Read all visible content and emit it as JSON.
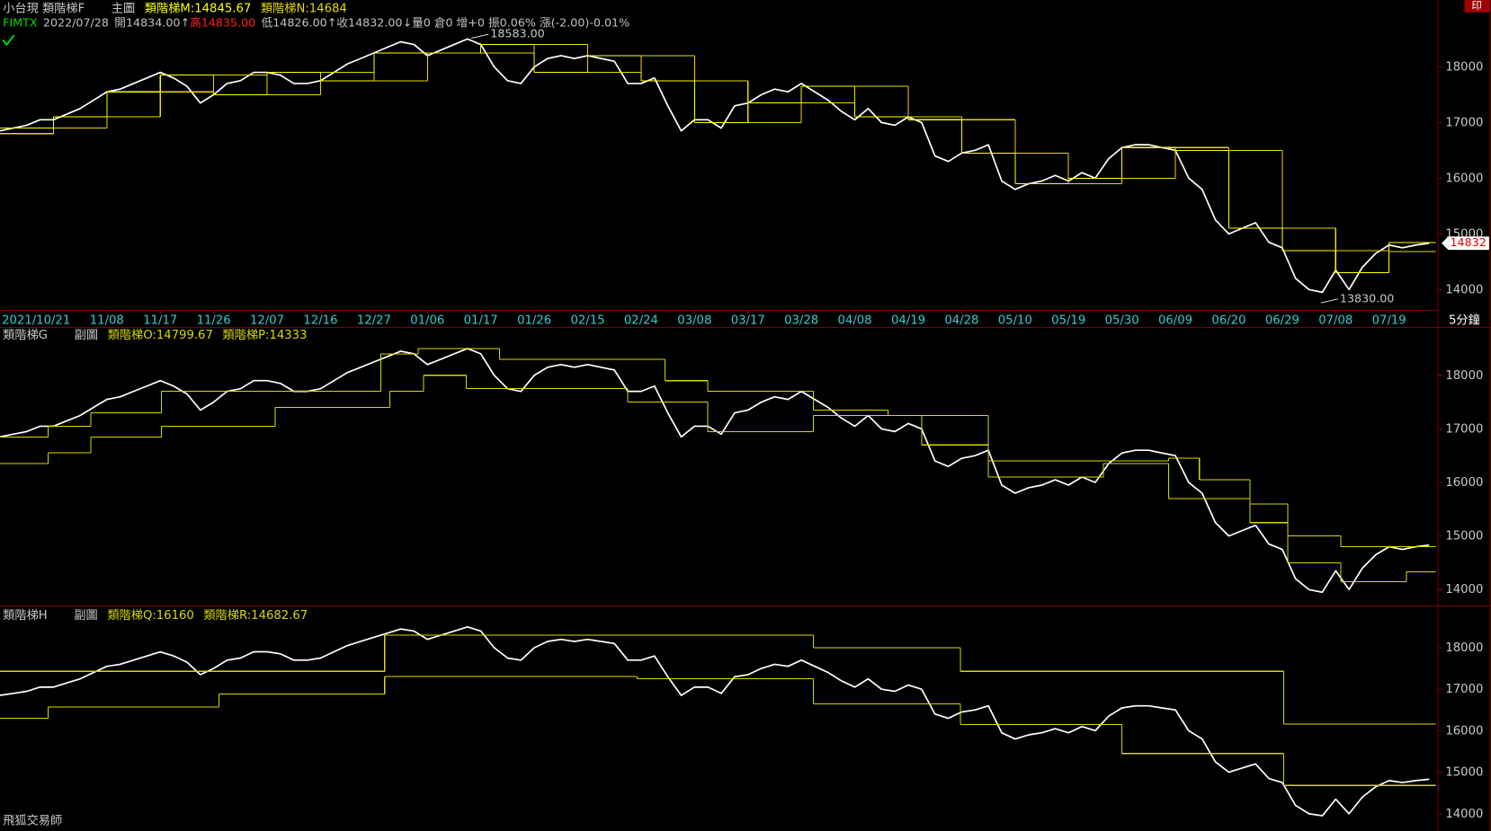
{
  "print_button": "印",
  "interval": "5分鐘",
  "footer": "飛狐交易師",
  "chart_data": [
    {
      "type": "line",
      "title": "小台現  類階梯F",
      "pane_label": "主圖",
      "quote": [
        {
          "text": "FIMTX",
          "color": "#00e000"
        },
        {
          "text": "2022/07/28",
          "color": "#c0c0c0"
        },
        {
          "text": "開14834.00↑",
          "color": "#c0c0c0"
        },
        {
          "text": "高14835.00",
          "color": "#ff2020"
        },
        {
          "text": "低14826.00↑收14832.00↓量0 倉0 增+0 振0.06% 漲(-2.00)-0.01%",
          "color": "#c0c0c0"
        }
      ],
      "xlim": [
        0,
        107.5
      ],
      "ylim": [
        13640,
        19200
      ],
      "yticks": [
        14000,
        15000,
        16000,
        17000,
        18000
      ],
      "xticks": [
        {
          "value": 0,
          "label": "2021/10/21"
        },
        {
          "value": 8,
          "label": "11/08"
        },
        {
          "value": 12,
          "label": "11/17"
        },
        {
          "value": 16,
          "label": "11/26"
        },
        {
          "value": 20,
          "label": "12/07"
        },
        {
          "value": 24,
          "label": "12/16"
        },
        {
          "value": 28,
          "label": "12/27"
        },
        {
          "value": 32,
          "label": "01/06"
        },
        {
          "value": 36,
          "label": "01/17"
        },
        {
          "value": 40,
          "label": "01/26"
        },
        {
          "value": 44,
          "label": "02/15"
        },
        {
          "value": 48,
          "label": "02/24"
        },
        {
          "value": 52,
          "label": "03/08"
        },
        {
          "value": 56,
          "label": "03/17"
        },
        {
          "value": 60,
          "label": "03/28"
        },
        {
          "value": 64,
          "label": "04/08"
        },
        {
          "value": 68,
          "label": "04/19"
        },
        {
          "value": 72,
          "label": "04/28"
        },
        {
          "value": 76,
          "label": "05/10"
        },
        {
          "value": 80,
          "label": "05/19"
        },
        {
          "value": 84,
          "label": "05/30"
        },
        {
          "value": 88,
          "label": "06/09"
        },
        {
          "value": 92,
          "label": "06/20"
        },
        {
          "value": 96,
          "label": "06/29"
        },
        {
          "value": 100,
          "label": "07/08"
        },
        {
          "value": 104,
          "label": "07/19"
        }
      ],
      "last_price": 14832,
      "annotations": [
        {
          "x": 36,
          "value": 18583,
          "label": "18583.00"
        },
        {
          "x": 99.6,
          "value": 13830,
          "label": "13830.00"
        }
      ],
      "series": [
        {
          "color": "#ffffff",
          "values": [
            16850,
            16900,
            16950,
            17050,
            17050,
            17150,
            17250,
            17400,
            17550,
            17600,
            17700,
            17800,
            17900,
            17800,
            17650,
            17350,
            17500,
            17700,
            17750,
            17900,
            17900,
            17850,
            17700,
            17700,
            17750,
            17900,
            18050,
            18150,
            18250,
            18350,
            18450,
            18400,
            18200,
            18300,
            18400,
            18500,
            18400,
            18000,
            17750,
            17700,
            18000,
            18150,
            18200,
            18150,
            18200,
            18150,
            18100,
            17700,
            17700,
            17800,
            17300,
            16850,
            17050,
            17050,
            16900,
            17300,
            17350,
            17500,
            17600,
            17550,
            17700,
            17550,
            17400,
            17200,
            17050,
            17250,
            17000,
            16950,
            17100,
            17000,
            16400,
            16300,
            16450,
            16500,
            16600,
            15950,
            15800,
            15900,
            15950,
            16050,
            15950,
            16100,
            16000,
            16350,
            16550,
            16600,
            16600,
            16550,
            16500,
            16000,
            15800,
            15250,
            15000,
            15100,
            15200,
            14850,
            14750,
            14200,
            14000,
            13950,
            14350,
            14000,
            14400,
            14650,
            14800,
            14750,
            14800,
            14832
          ]
        },
        {
          "name": "類階梯M:14845.67",
          "color": "#ffff00",
          "x": [
            0,
            4,
            8,
            12,
            16,
            20,
            24,
            28,
            32,
            36,
            40,
            44,
            48,
            52,
            56,
            60,
            64,
            68,
            72,
            76,
            80,
            84,
            88,
            92,
            96,
            100,
            104
          ],
          "values": [
            16900,
            17100,
            17550,
            17850,
            17500,
            17900,
            17750,
            18250,
            18250,
            18400,
            17900,
            18200,
            17750,
            17000,
            17350,
            17650,
            17100,
            17050,
            16450,
            15900,
            16000,
            16550,
            16500,
            15100,
            14700,
            14300,
            14845.67
          ]
        },
        {
          "name": "類階梯N:14684",
          "color": "#e8d800",
          "x": [
            0,
            4,
            8,
            12,
            16,
            20,
            24,
            28,
            32,
            36,
            40,
            44,
            48,
            52,
            56,
            60,
            64,
            68,
            72,
            76,
            80,
            84,
            88,
            92,
            96,
            100,
            104
          ],
          "values": [
            16800,
            16900,
            17100,
            17550,
            17850,
            17500,
            17900,
            17750,
            18250,
            18250,
            18400,
            17900,
            18200,
            17750,
            17000,
            17350,
            17650,
            17100,
            17050,
            16450,
            15900,
            16000,
            16550,
            16500,
            15100,
            14700,
            14684
          ]
        }
      ]
    },
    {
      "type": "line",
      "title": "類階梯G",
      "pane_label": "副圖",
      "xlim": [
        0,
        107.5
      ],
      "ylim": [
        13730,
        18890
      ],
      "yticks": [
        14000,
        15000,
        16000,
        17000,
        18000
      ],
      "series": [
        {
          "color": "#ffffff",
          "values": [
            16850,
            16900,
            16950,
            17050,
            17050,
            17150,
            17250,
            17400,
            17550,
            17600,
            17700,
            17800,
            17900,
            17800,
            17650,
            17350,
            17500,
            17700,
            17750,
            17900,
            17900,
            17850,
            17700,
            17700,
            17750,
            17900,
            18050,
            18150,
            18250,
            18350,
            18450,
            18400,
            18200,
            18300,
            18400,
            18500,
            18400,
            18000,
            17750,
            17700,
            18000,
            18150,
            18200,
            18150,
            18200,
            18150,
            18100,
            17700,
            17700,
            17800,
            17300,
            16850,
            17050,
            17050,
            16900,
            17300,
            17350,
            17500,
            17600,
            17550,
            17700,
            17550,
            17400,
            17200,
            17050,
            17250,
            17000,
            16950,
            17100,
            17000,
            16400,
            16300,
            16450,
            16500,
            16600,
            15950,
            15800,
            15900,
            15950,
            16050,
            15950,
            16100,
            16000,
            16350,
            16550,
            16600,
            16600,
            16550,
            16500,
            16000,
            15800,
            15250,
            15000,
            15100,
            15200,
            14850,
            14750,
            14200,
            14000,
            13950,
            14350,
            14000,
            14400,
            14650,
            14800,
            14750,
            14800,
            14832
          ]
        },
        {
          "name": "類階梯O:14799.67",
          "color": "#d8d800",
          "x": [
            0,
            3.6,
            6.8,
            12.1,
            28.5,
            31.3,
            37.4,
            49.8,
            53,
            60.9,
            66.5,
            69,
            74,
            87.5,
            89.8,
            93.6,
            96.4,
            100.4
          ],
          "values": [
            16850,
            17050,
            17300,
            17700,
            18400,
            18500,
            18300,
            17900,
            17700,
            17350,
            17250,
            16700,
            16400,
            16450,
            16050,
            15600,
            15000,
            14799.67
          ]
        },
        {
          "name": "類階梯P:14333",
          "color": "#d8d800",
          "x": [
            0,
            3.6,
            6.8,
            12.1,
            20.6,
            29.2,
            31.7,
            34.9,
            47,
            53,
            60.9,
            74,
            82.6,
            87.5,
            93.6,
            96.4,
            100.4,
            105.3
          ],
          "values": [
            16350,
            16550,
            16850,
            17050,
            17400,
            17700,
            18000,
            17750,
            17500,
            16950,
            17250,
            16100,
            16350,
            15700,
            15250,
            14500,
            14150,
            14333
          ]
        }
      ]
    },
    {
      "type": "line",
      "title": "類階梯H",
      "pane_label": "副圖",
      "xlim": [
        0,
        107.5
      ],
      "ylim": [
        13630,
        18960
      ],
      "yticks": [
        14000,
        15000,
        16000,
        17000,
        18000
      ],
      "series": [
        {
          "color": "#ffffff",
          "values": [
            16850,
            16900,
            16950,
            17050,
            17050,
            17150,
            17250,
            17400,
            17550,
            17600,
            17700,
            17800,
            17900,
            17800,
            17650,
            17350,
            17500,
            17700,
            17750,
            17900,
            17900,
            17850,
            17700,
            17700,
            17750,
            17900,
            18050,
            18150,
            18250,
            18350,
            18450,
            18400,
            18200,
            18300,
            18400,
            18500,
            18400,
            18000,
            17750,
            17700,
            18000,
            18150,
            18200,
            18150,
            18200,
            18150,
            18100,
            17700,
            17700,
            17800,
            17300,
            16850,
            17050,
            17050,
            16900,
            17300,
            17350,
            17500,
            17600,
            17550,
            17700,
            17550,
            17400,
            17200,
            17050,
            17250,
            17000,
            16950,
            17100,
            17000,
            16400,
            16300,
            16450,
            16500,
            16600,
            15950,
            15800,
            15900,
            15950,
            16050,
            15950,
            16100,
            16000,
            16350,
            16550,
            16600,
            16600,
            16550,
            16500,
            16000,
            15800,
            15250,
            15000,
            15100,
            15200,
            14850,
            14750,
            14200,
            14000,
            13950,
            14350,
            14000,
            14400,
            14650,
            14800,
            14750,
            14800,
            14832
          ]
        },
        {
          "name": "類階梯Q:16160",
          "color": "#d8d800",
          "x": [
            0,
            28.8,
            60.9,
            71.9,
            96.1
          ],
          "values": [
            17430,
            18300,
            18000,
            17430,
            16160
          ]
        },
        {
          "name": "類階梯R:14682.67",
          "color": "#d8d800",
          "x": [
            0,
            3.6,
            16.4,
            28.8,
            47.7,
            60.9,
            71.9,
            84,
            96.1
          ],
          "values": [
            16300,
            16570,
            16880,
            17310,
            17250,
            16650,
            16150,
            15450,
            14682.67
          ]
        }
      ]
    }
  ]
}
